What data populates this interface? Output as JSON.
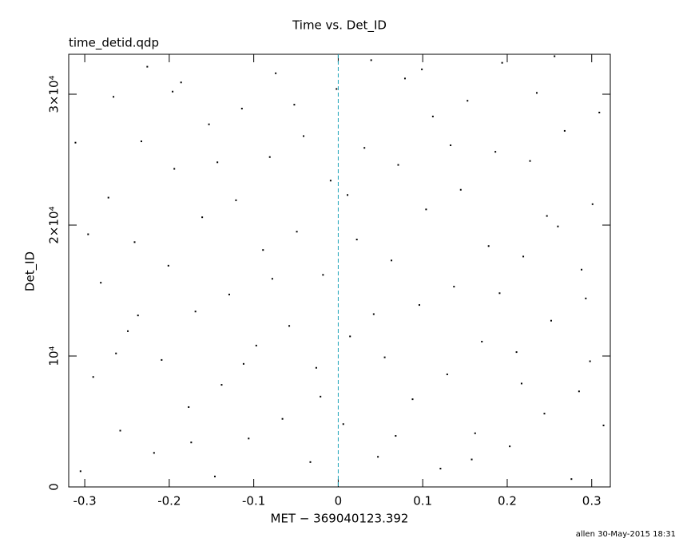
{
  "chart_data": {
    "type": "scatter",
    "title": "Time vs. Det_ID",
    "subtitle": "time_detid.qdp",
    "x_label": "MET − 369040123.392",
    "y_label": "Det_ID",
    "footer": "allen 30-May-2015 18:31",
    "color": "#000000",
    "vline": {
      "x": 0,
      "color": "#1aa3b8"
    },
    "xlim": [
      -0.319,
      0.322
    ],
    "ylim": [
      0,
      33050
    ],
    "xticks": [
      -0.3,
      -0.2,
      -0.1,
      0,
      0.1,
      0.2,
      0.3
    ],
    "yticks": [
      0,
      {
        "value": 10000,
        "label": "10⁴"
      },
      {
        "value": 20000,
        "label": "2×10⁴"
      },
      {
        "value": 30000,
        "label": "3×10⁴"
      }
    ],
    "x": [
      -0.305,
      -0.29,
      -0.281,
      -0.272,
      -0.266,
      -0.258,
      -0.249,
      -0.241,
      -0.233,
      -0.226,
      -0.218,
      -0.209,
      -0.201,
      -0.194,
      -0.186,
      -0.177,
      -0.169,
      -0.161,
      -0.153,
      -0.146,
      -0.138,
      -0.129,
      -0.121,
      -0.114,
      -0.106,
      -0.097,
      -0.089,
      -0.081,
      -0.074,
      -0.066,
      -0.058,
      -0.049,
      -0.041,
      -0.033,
      -0.026,
      -0.018,
      -0.009,
      -0.002,
      0.006,
      0.014,
      0.022,
      0.031,
      0.039,
      0.047,
      0.055,
      0.063,
      0.071,
      0.079,
      0.088,
      0.096,
      0.104,
      0.112,
      0.121,
      0.129,
      0.137,
      0.145,
      0.153,
      0.162,
      0.17,
      0.178,
      0.186,
      0.194,
      0.203,
      0.211,
      0.219,
      0.227,
      0.235,
      0.244,
      0.252,
      0.26,
      0.268,
      0.276,
      0.285,
      0.293,
      0.301,
      0.309,
      -0.296,
      -0.237,
      -0.174,
      -0.112,
      -0.052,
      0.011,
      0.068,
      0.133,
      0.191,
      0.247,
      0.298,
      -0.263,
      -0.143,
      -0.021,
      0.099,
      0.217,
      0.288,
      -0.196,
      -0.078,
      0.042,
      0.158,
      0.256,
      -0.311,
      0.314
    ],
    "values": [
      1200,
      8400,
      15600,
      22100,
      29800,
      4300,
      11900,
      18700,
      26400,
      32100,
      2600,
      9700,
      16900,
      24300,
      30900,
      6100,
      13400,
      20600,
      27700,
      800,
      7800,
      14700,
      21900,
      28900,
      3700,
      10800,
      18100,
      25200,
      31600,
      5200,
      12300,
      19500,
      26800,
      1900,
      9100,
      16200,
      23400,
      30400,
      4800,
      11500,
      18900,
      25900,
      32600,
      2300,
      9900,
      17300,
      24600,
      31200,
      6700,
      13900,
      21200,
      28300,
      1400,
      8600,
      15300,
      22700,
      29500,
      4100,
      11100,
      18400,
      25600,
      32400,
      3100,
      10300,
      17600,
      24900,
      30100,
      5600,
      12700,
      19900,
      27200,
      600,
      7300,
      14400,
      21600,
      28600,
      19300,
      13100,
      3400,
      9400,
      29200,
      22300,
      3900,
      26100,
      14800,
      20700,
      9600,
      10200,
      24800,
      6900,
      31900,
      7900,
      16600,
      30200,
      15900,
      13200,
      2100,
      32900,
      26300,
      4700
    ]
  }
}
